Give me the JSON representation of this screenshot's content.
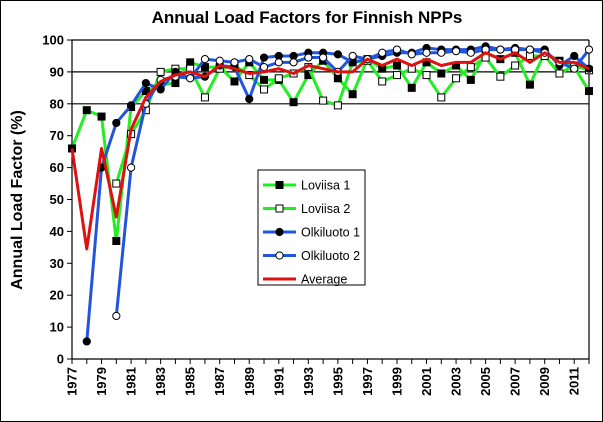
{
  "chart_data": {
    "type": "line",
    "title": "Annual Load Factors for Finnish NPPs",
    "ylabel": "Annual Load Factor (%)",
    "xlabel": "",
    "xlim": [
      1977,
      2012
    ],
    "ylim": [
      0,
      100
    ],
    "yticks": [
      0,
      10,
      20,
      30,
      40,
      50,
      60,
      70,
      80,
      90,
      100
    ],
    "xtick_labels": [
      "1977",
      "1979",
      "1981",
      "1983",
      "1985",
      "1987",
      "1989",
      "1991",
      "1993",
      "1995",
      "1997",
      "1999",
      "2001",
      "2003",
      "2005",
      "2007",
      "2009",
      "2011"
    ],
    "reference_lines": [
      80,
      90
    ],
    "legend_position": "center",
    "series": [
      {
        "name": "Loviisa 1",
        "color": "#22ee22",
        "marker": "square-filled",
        "x": [
          1977,
          1978,
          1979,
          1980,
          1981,
          1982,
          1983,
          1984,
          1985,
          1986,
          1987,
          1988,
          1989,
          1990,
          1991,
          1992,
          1993,
          1994,
          1995,
          1996,
          1997,
          1998,
          1999,
          2000,
          2001,
          2002,
          2003,
          2004,
          2005,
          2006,
          2007,
          2008,
          2009,
          2010,
          2011,
          2012
        ],
        "values": [
          66,
          78,
          76,
          37,
          79,
          84,
          86,
          86.5,
          93,
          91.5,
          91.5,
          87,
          93,
          87.5,
          87.5,
          80.5,
          89,
          93.5,
          88,
          83,
          94,
          91,
          92,
          85,
          93,
          89.5,
          92,
          87.5,
          96,
          94,
          96,
          86,
          96,
          93.5,
          91.5,
          84
        ]
      },
      {
        "name": "Loviisa 2",
        "color": "#22ee22",
        "marker": "square-open",
        "x": [
          1980,
          1981,
          1982,
          1983,
          1984,
          1985,
          1986,
          1987,
          1988,
          1989,
          1990,
          1991,
          1992,
          1993,
          1994,
          1995,
          1996,
          1997,
          1998,
          1999,
          2000,
          2001,
          2002,
          2003,
          2004,
          2005,
          2006,
          2007,
          2008,
          2009,
          2010,
          2011,
          2012
        ],
        "values": [
          55,
          70.5,
          78,
          90,
          91,
          91,
          82,
          91,
          92,
          89,
          84.5,
          88,
          89.5,
          91.5,
          81,
          79.5,
          93,
          93.5,
          87,
          89,
          91,
          89,
          82,
          88,
          91.5,
          94.5,
          88.5,
          92,
          95,
          95,
          89.5,
          92,
          90.5
        ]
      },
      {
        "name": "Olkiluoto 1",
        "color": "#2255dd",
        "marker": "circle-filled",
        "x": [
          1978,
          1979,
          1980,
          1981,
          1982,
          1983,
          1984,
          1985,
          1986,
          1987,
          1988,
          1989,
          1990,
          1991,
          1992,
          1993,
          1994,
          1995,
          1996,
          1997,
          1998,
          1999,
          2000,
          2001,
          2002,
          2003,
          2004,
          2005,
          2006,
          2007,
          2008,
          2009,
          2010,
          2011,
          2012
        ],
        "values": [
          5.5,
          60,
          74,
          79.5,
          86.5,
          84.5,
          90,
          88,
          88.5,
          92,
          91.5,
          81.5,
          94.5,
          95,
          95,
          96,
          96,
          95.5,
          93,
          94,
          95,
          96,
          96,
          97.5,
          97,
          97,
          97,
          98,
          97,
          97.5,
          97,
          97,
          92,
          95,
          91
        ]
      },
      {
        "name": "Olkiluoto 2",
        "color": "#2255dd",
        "marker": "circle-open",
        "x": [
          1980,
          1981,
          1982,
          1983,
          1984,
          1985,
          1986,
          1987,
          1988,
          1989,
          1990,
          1991,
          1992,
          1993,
          1994,
          1995,
          1996,
          1997,
          1998,
          1999,
          2000,
          2001,
          2002,
          2003,
          2004,
          2005,
          2006,
          2007,
          2008,
          2009,
          2010,
          2011,
          2012
        ],
        "values": [
          13.5,
          60,
          80,
          87.5,
          88.5,
          88,
          94,
          93.5,
          93,
          94,
          91.5,
          93,
          93,
          94.5,
          94.5,
          90,
          95,
          94,
          96,
          97,
          95.5,
          96,
          96,
          96.5,
          96,
          97,
          97,
          97,
          97,
          96,
          93,
          91,
          97
        ]
      },
      {
        "name": "Average",
        "color": "#dd1111",
        "marker": "none",
        "x": [
          1977,
          1978,
          1979,
          1980,
          1981,
          1982,
          1983,
          1984,
          1985,
          1986,
          1987,
          1988,
          1989,
          1990,
          1991,
          1992,
          1993,
          1994,
          1995,
          1996,
          1997,
          1998,
          1999,
          2000,
          2001,
          2002,
          2003,
          2004,
          2005,
          2006,
          2007,
          2008,
          2009,
          2010,
          2011,
          2012
        ],
        "values": [
          66,
          34.5,
          66,
          44.5,
          72,
          82,
          87,
          89,
          90,
          88.5,
          92,
          91,
          89.5,
          90,
          91,
          89.5,
          92,
          91,
          90,
          90,
          94,
          92,
          94,
          92,
          94,
          92,
          93,
          93,
          96,
          94,
          96,
          93,
          96,
          93,
          93,
          91
        ]
      }
    ]
  }
}
